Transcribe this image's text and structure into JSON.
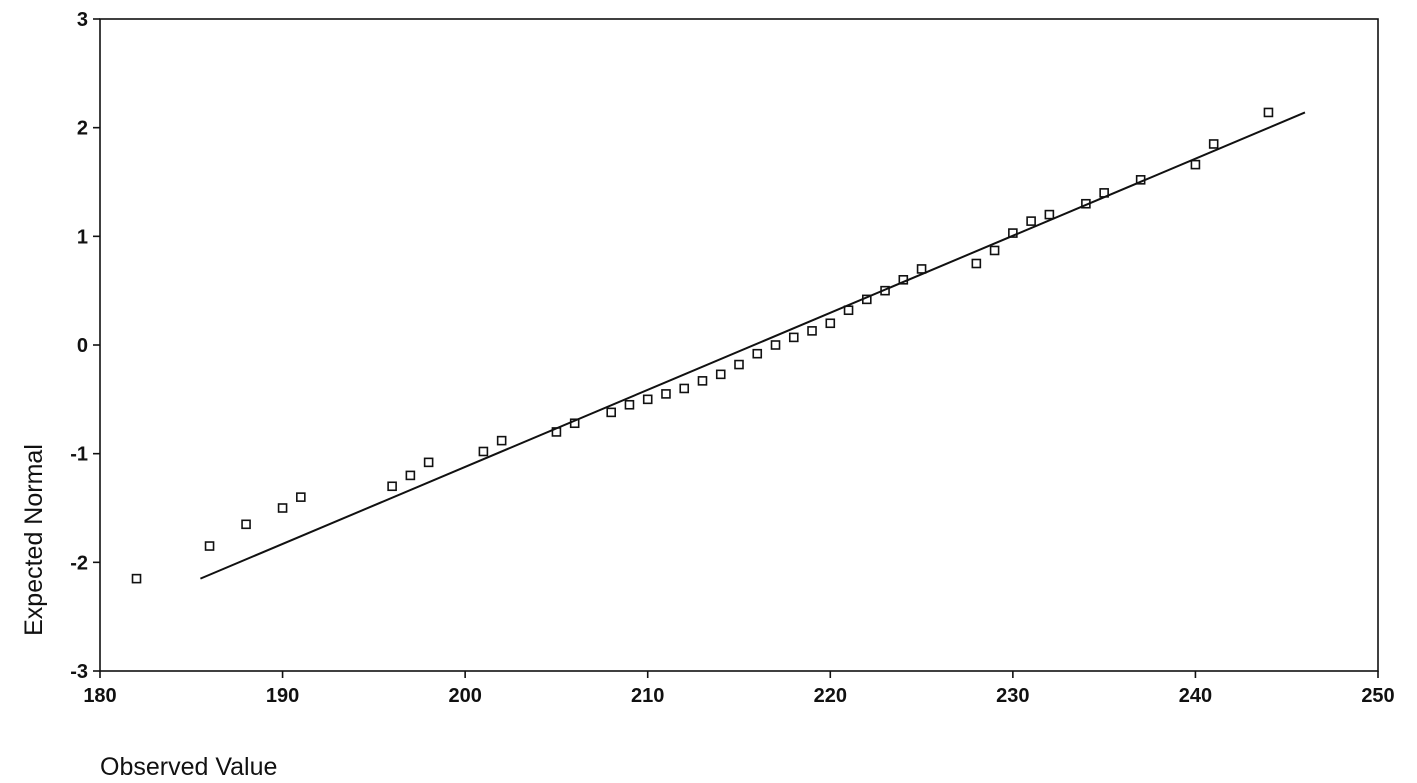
{
  "chart_data": {
    "type": "scatter",
    "title": "",
    "xlabel": "Observed Value",
    "ylabel": "Expected Normal",
    "xlim": [
      180,
      250
    ],
    "ylim": [
      -3,
      3
    ],
    "xticks": [
      180,
      190,
      200,
      210,
      220,
      230,
      240,
      250
    ],
    "yticks": [
      -3,
      -2,
      -1,
      0,
      1,
      2,
      3
    ],
    "grid": false,
    "legend": "none",
    "colors": {
      "marker": "#111111",
      "line": "#111111",
      "axis": "#111111"
    },
    "series": [
      {
        "kind": "points",
        "marker": "hollow-square",
        "points": [
          [
            182,
            -2.15
          ],
          [
            186,
            -1.85
          ],
          [
            188,
            -1.65
          ],
          [
            190,
            -1.5
          ],
          [
            191,
            -1.4
          ],
          [
            196,
            -1.3
          ],
          [
            197,
            -1.2
          ],
          [
            198,
            -1.08
          ],
          [
            201,
            -0.98
          ],
          [
            202,
            -0.88
          ],
          [
            205,
            -0.8
          ],
          [
            206,
            -0.72
          ],
          [
            208,
            -0.62
          ],
          [
            209,
            -0.55
          ],
          [
            210,
            -0.5
          ],
          [
            211,
            -0.45
          ],
          [
            212,
            -0.4
          ],
          [
            213,
            -0.33
          ],
          [
            214,
            -0.27
          ],
          [
            215,
            -0.18
          ],
          [
            216,
            -0.08
          ],
          [
            217,
            0.0
          ],
          [
            218,
            0.07
          ],
          [
            219,
            0.13
          ],
          [
            220,
            0.2
          ],
          [
            221,
            0.32
          ],
          [
            222,
            0.42
          ],
          [
            223,
            0.5
          ],
          [
            224,
            0.6
          ],
          [
            225,
            0.7
          ],
          [
            228,
            0.75
          ],
          [
            229,
            0.87
          ],
          [
            230,
            1.03
          ],
          [
            231,
            1.14
          ],
          [
            232,
            1.2
          ],
          [
            234,
            1.3
          ],
          [
            235,
            1.4
          ],
          [
            237,
            1.52
          ],
          [
            240,
            1.66
          ],
          [
            241,
            1.85
          ],
          [
            244,
            2.14
          ]
        ]
      },
      {
        "kind": "reference-line",
        "points": [
          [
            185.5,
            -2.15
          ],
          [
            246,
            2.14
          ]
        ]
      }
    ]
  }
}
